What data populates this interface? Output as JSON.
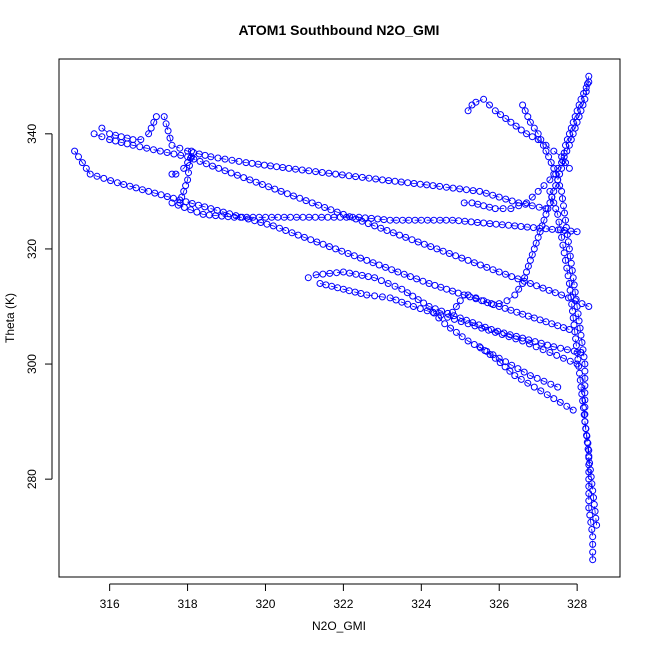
{
  "chart_data": {
    "type": "scatter",
    "title": "ATOM1 Southbound N2O_GMI",
    "xlabel": "N2O_GMI",
    "ylabel": "Theta (K)",
    "xlim": [
      314.7,
      329.1
    ],
    "ylim": [
      263,
      353
    ],
    "x_ticks": [
      316,
      318,
      320,
      322,
      324,
      326,
      328
    ],
    "y_ticks": [
      280,
      300,
      320,
      340
    ],
    "grid": false,
    "legend": "none",
    "marker": "open-circle",
    "point_color": "#0000ff",
    "connect_lines": true,
    "series": [
      {
        "x": [
          328.3,
          328.2,
          328.0,
          327.8,
          327.6,
          327.3,
          327.0,
          326.7,
          326.3,
          325.9,
          325.6,
          325.3,
          325.1
        ],
        "y": [
          350,
          346,
          342,
          338,
          335,
          332,
          330,
          328,
          327,
          327,
          327.5,
          328,
          328
        ]
      },
      {
        "x": [
          327.2,
          326.5,
          325.5,
          324.3,
          323.0,
          321.8,
          320.6,
          319.5,
          318.6,
          318.0,
          317.6,
          317.4
        ],
        "y": [
          327,
          328,
          330,
          331,
          332,
          333,
          334,
          335,
          336,
          337,
          338,
          343
        ]
      },
      {
        "x": [
          328.0,
          327.2,
          326.4,
          325.6,
          324.8,
          324.0,
          323.2,
          322.4,
          321.6,
          320.8,
          320.0,
          319.2,
          318.4,
          317.6
        ],
        "y": [
          323,
          323.5,
          324,
          324.5,
          325,
          325,
          325,
          325.5,
          325.5,
          325.5,
          325.5,
          325.5,
          326,
          328
        ]
      },
      {
        "x": [
          328.3,
          327.6,
          326.8,
          326.0,
          325.2,
          324.4,
          323.6,
          322.8,
          322.0,
          321.2,
          320.4,
          319.6,
          318.8,
          318.0,
          317.3,
          316.6,
          316.0,
          315.6
        ],
        "y": [
          310,
          312,
          314,
          316,
          318,
          320,
          322,
          324,
          326,
          328,
          330,
          332,
          334,
          336,
          337,
          338,
          339,
          340
        ]
      },
      {
        "x": [
          328.1,
          327.4,
          326.6,
          325.8,
          325.0,
          324.2,
          323.5,
          322.8,
          322.0,
          321.3,
          321.1
        ],
        "y": [
          302,
          303,
          304.5,
          306,
          308,
          310,
          313,
          315,
          316,
          315.5,
          315
        ]
      },
      {
        "x": [
          327.8,
          326.9,
          326.0,
          325.1,
          324.2,
          323.4,
          322.6,
          321.8,
          321.0,
          320.2,
          319.4,
          318.6,
          317.8,
          317.0,
          316.2,
          315.5,
          315.1
        ],
        "y": [
          306,
          308,
          310,
          312,
          314,
          316,
          318,
          320,
          322,
          324,
          325.5,
          327,
          328.5,
          330,
          331.5,
          333,
          337
        ]
      },
      {
        "x": [
          328.0,
          327.3,
          326.6,
          325.9,
          325.2,
          324.5,
          323.8,
          323.2,
          322.6,
          322.0,
          321.4
        ],
        "y": [
          300,
          302,
          304,
          305.5,
          307,
          308.5,
          310,
          311.5,
          312,
          313,
          314
        ]
      },
      {
        "x": [
          327.5,
          326.8,
          326.0,
          325.2,
          324.6,
          324.3
        ],
        "y": [
          296,
          298,
          301,
          304,
          307,
          309
        ]
      },
      {
        "x": [
          327.9,
          327.4,
          326.9,
          326.4,
          325.9,
          325.5
        ],
        "y": [
          292,
          294,
          296,
          298,
          301,
          303
        ]
      },
      {
        "x": [
          328.4,
          328.4,
          328.3,
          328.3,
          328.3,
          328.2,
          328.2,
          328.2,
          328.1,
          328.0,
          327.9,
          327.8,
          327.7,
          327.6,
          327.4,
          327.2,
          327.0,
          326.8,
          326.6
        ],
        "y": [
          266,
          270,
          275,
          280,
          285,
          290,
          295,
          300,
          305,
          310,
          315,
          320,
          325,
          330,
          334,
          337,
          340,
          342,
          345
        ]
      },
      {
        "x": [
          328.3,
          328.1,
          327.9,
          327.7,
          327.6,
          327.4,
          327.2,
          327.0,
          326.8,
          326.6,
          326.4,
          326.2,
          326.0,
          325.8,
          325.6,
          325.4,
          325.2,
          325.0,
          324.9,
          324.8
        ],
        "y": [
          349,
          346,
          342,
          338,
          334,
          330,
          326,
          322,
          318,
          314,
          312,
          311,
          310.5,
          310.5,
          311,
          311.5,
          312,
          311,
          310,
          309
        ]
      },
      {
        "x": [
          317.6,
          317.7,
          317.9,
          318.0,
          318.1,
          318.1,
          318.0,
          317.9,
          317.8
        ],
        "y": [
          333,
          333,
          334,
          335,
          336,
          337,
          332,
          330,
          328
        ]
      },
      {
        "x": [
          315.8,
          316.0,
          316.3,
          316.6,
          316.8,
          317.0,
          317.2
        ],
        "y": [
          341,
          340,
          339.5,
          339,
          339,
          340,
          343
        ]
      },
      {
        "x": [
          325.2,
          325.3,
          325.4,
          325.6,
          325.9,
          326.3,
          326.7,
          327.0,
          327.2,
          327.4,
          327.6,
          327.8
        ],
        "y": [
          344,
          345,
          345.5,
          346,
          344,
          342,
          340,
          339,
          338,
          337,
          336,
          334
        ]
      },
      {
        "x": [
          328.5,
          328.4,
          328.3,
          328.2,
          328.1,
          328.0,
          327.9,
          327.8,
          327.7,
          327.6,
          327.5,
          327.4,
          327.3
        ],
        "y": [
          272,
          278,
          284,
          290,
          296,
          302,
          308,
          314,
          318,
          322,
          326,
          328,
          330
        ]
      }
    ]
  }
}
